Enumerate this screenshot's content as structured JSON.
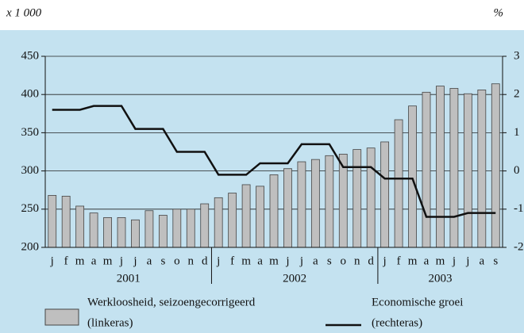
{
  "chart_data": {
    "type": "bar_line",
    "y_label": "x 1 000",
    "y2_label": "%",
    "categories": [
      "j",
      "f",
      "m",
      "a",
      "m",
      "j",
      "j",
      "a",
      "s",
      "o",
      "n",
      "d",
      "j",
      "f",
      "m",
      "a",
      "m",
      "j",
      "j",
      "a",
      "s",
      "o",
      "n",
      "d",
      "j",
      "f",
      "m",
      "a",
      "m",
      "j",
      "j",
      "a",
      "s"
    ],
    "years": [
      "2001",
      "2002",
      "2003"
    ],
    "series": [
      {
        "name": "Werkloosheid, seizoengecorrigeerd",
        "axis_note": "(linkeras)",
        "kind": "bar",
        "color": "#bfbfbf",
        "values": [
          268,
          267,
          254,
          245,
          239,
          239,
          236,
          248,
          242,
          250,
          250,
          257,
          265,
          271,
          282,
          280,
          295,
          303,
          312,
          315,
          320,
          322,
          328,
          330,
          338,
          367,
          385,
          403,
          411,
          408,
          401,
          406,
          414
        ]
      },
      {
        "name": "Economische groei",
        "axis_note": "(rechteras)",
        "kind": "line",
        "axis": "y2",
        "color": "#111111",
        "values": [
          1.6,
          1.6,
          1.6,
          1.7,
          1.7,
          1.7,
          1.1,
          1.1,
          1.1,
          0.5,
          0.5,
          0.5,
          -0.1,
          -0.1,
          -0.1,
          0.2,
          0.2,
          0.2,
          0.7,
          0.7,
          0.7,
          0.1,
          0.1,
          0.1,
          -0.2,
          -0.2,
          -0.2,
          -1.2,
          -1.2,
          -1.2,
          -1.1,
          -1.1,
          -1.1
        ]
      }
    ],
    "ylim": [
      200,
      450
    ],
    "yticks": [
      200,
      250,
      300,
      350,
      400,
      450
    ],
    "y2lim": [
      -2,
      3
    ],
    "y2ticks": [
      -2,
      -1,
      0,
      1,
      2,
      3
    ],
    "grid": true
  }
}
